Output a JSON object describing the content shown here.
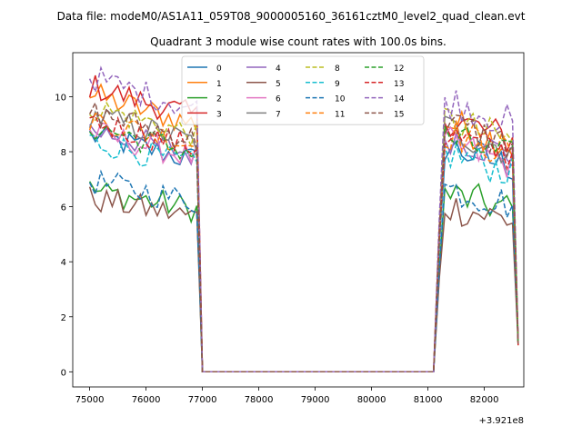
{
  "chart_data": {
    "type": "line",
    "suptitle": "Data file: modeM0/AS1A11_059T08_9000005160_36161cztM0_level2_quad_clean.evt",
    "title": "Quadrant 3 module wise count rates with 100.0s bins.",
    "xlabel": "",
    "ylabel": "",
    "x_offset_label": "+3.921e8",
    "xlim": [
      74700,
      82700
    ],
    "ylim": [
      -0.55,
      11.6
    ],
    "xticks": [
      75000,
      76000,
      77000,
      78000,
      79000,
      80000,
      81000,
      82000
    ],
    "yticks": [
      0,
      2,
      4,
      6,
      8,
      10
    ],
    "grid": false,
    "legend_location": "top-center",
    "legend_columns": 4,
    "segments": {
      "first_x_range": [
        75000,
        77000
      ],
      "gap_x_range": [
        77000,
        81100
      ],
      "second_x_range": [
        81100,
        82600
      ]
    },
    "series": [
      {
        "name": "0",
        "color": "#1f77b4",
        "style": "solid",
        "first_mean": 8.2,
        "second_mean": 7.6
      },
      {
        "name": "1",
        "color": "#ff7f0e",
        "style": "solid",
        "first_mean": 9.6,
        "second_mean": 8.4
      },
      {
        "name": "2",
        "color": "#2ca02c",
        "style": "solid",
        "first_mean": 6.3,
        "second_mean": 6.0
      },
      {
        "name": "3",
        "color": "#d62728",
        "style": "solid",
        "first_mean": 9.9,
        "second_mean": 8.6
      },
      {
        "name": "4",
        "color": "#9467bd",
        "style": "solid",
        "first_mean": 8.4,
        "second_mean": 8.0
      },
      {
        "name": "5",
        "color": "#8c564b",
        "style": "solid",
        "first_mean": 6.0,
        "second_mean": 5.6
      },
      {
        "name": "6",
        "color": "#e377c2",
        "style": "solid",
        "first_mean": 8.3,
        "second_mean": 7.7
      },
      {
        "name": "7",
        "color": "#7f7f7f",
        "style": "solid",
        "first_mean": 8.9,
        "second_mean": 8.2
      },
      {
        "name": "8",
        "color": "#bcbd22",
        "style": "dashed",
        "first_mean": 9.2,
        "second_mean": 8.5
      },
      {
        "name": "9",
        "color": "#17becf",
        "style": "dashed",
        "first_mean": 8.0,
        "second_mean": 7.4
      },
      {
        "name": "10",
        "color": "#1f77b4",
        "style": "dashed",
        "first_mean": 6.6,
        "second_mean": 6.2
      },
      {
        "name": "11",
        "color": "#ff7f0e",
        "style": "dashed",
        "first_mean": 8.8,
        "second_mean": 8.1
      },
      {
        "name": "12",
        "color": "#2ca02c",
        "style": "dashed",
        "first_mean": 8.5,
        "second_mean": 7.9
      },
      {
        "name": "13",
        "color": "#d62728",
        "style": "dashed",
        "first_mean": 8.7,
        "second_mean": 8.0
      },
      {
        "name": "14",
        "color": "#9467bd",
        "style": "dashed",
        "first_mean": 10.2,
        "second_mean": 9.2
      },
      {
        "name": "15",
        "color": "#8c564b",
        "style": "dashed",
        "first_mean": 9.0,
        "second_mean": 8.4
      }
    ]
  }
}
